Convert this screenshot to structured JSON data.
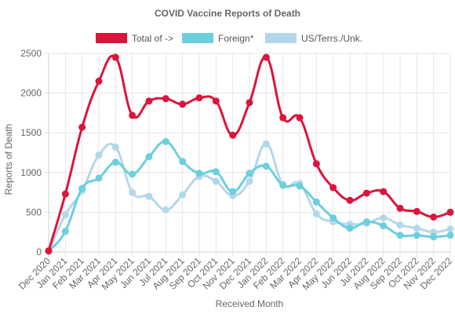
{
  "chart_data": {
    "type": "line",
    "title": "COVID Vaccine Reports of Death",
    "xlabel": "Received Month",
    "ylabel": "Reports of Death",
    "ylim": [
      0,
      2500
    ],
    "yticks": [
      0,
      500,
      1000,
      1500,
      2000,
      2500
    ],
    "grid": true,
    "legend_position": "top",
    "categories": [
      "Dec 2020",
      "Jan 2021",
      "Feb 2021",
      "Mar 2021",
      "Apr 2021",
      "May 2021",
      "Jun 2021",
      "Jul 2021",
      "Aug 2021",
      "Sep 2021",
      "Oct 2021",
      "Nov 2021",
      "Dec 2021",
      "Jan 2022",
      "Feb 2022",
      "Mar 2022",
      "Apr 2022",
      "May 2022",
      "Jun 2022",
      "Jul 2022",
      "Aug 2022",
      "Sep 2022",
      "Oct 2022",
      "Nov 2022",
      "Dec 2022"
    ],
    "series": [
      {
        "name": "Total of ->",
        "color": "#dc143c",
        "values": [
          15,
          730,
          1570,
          2150,
          2450,
          1720,
          1900,
          1930,
          1860,
          1940,
          1900,
          1470,
          1880,
          2450,
          1690,
          1690,
          1110,
          810,
          650,
          740,
          760,
          550,
          510,
          440,
          500
        ]
      },
      {
        "name": "Foreign*",
        "color": "#6ccfdc",
        "values": [
          10,
          260,
          800,
          930,
          1130,
          980,
          1200,
          1390,
          1140,
          990,
          1010,
          760,
          990,
          1080,
          840,
          830,
          630,
          430,
          300,
          380,
          330,
          210,
          210,
          190,
          210
        ]
      },
      {
        "name": "US/Terrs./Unk.",
        "color": "#b3d7ea",
        "values": [
          5,
          470,
          770,
          1220,
          1320,
          750,
          700,
          530,
          720,
          950,
          890,
          710,
          890,
          1360,
          850,
          860,
          480,
          380,
          350,
          360,
          430,
          340,
          300,
          250,
          290
        ]
      }
    ]
  }
}
